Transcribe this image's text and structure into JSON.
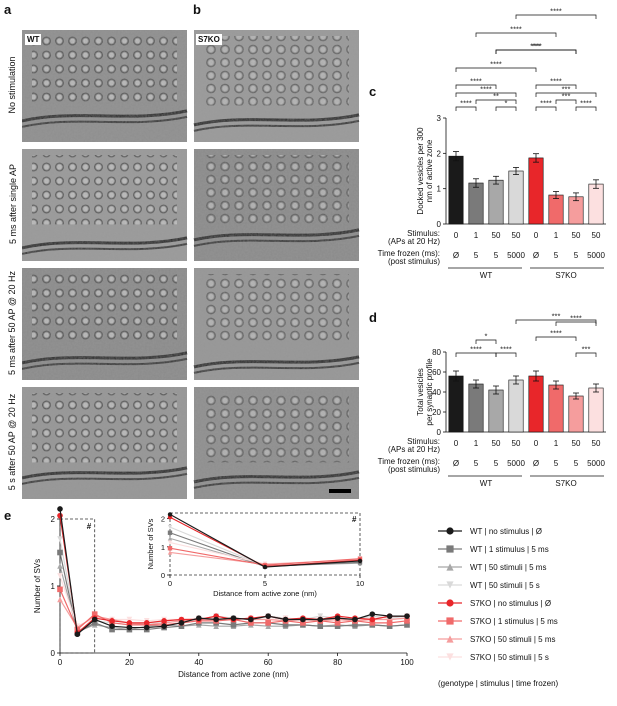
{
  "panel_labels": {
    "a": "a",
    "b": "b",
    "c": "c",
    "d": "d",
    "e": "e"
  },
  "micrographs": {
    "col_tags": [
      "WT",
      "S7KO"
    ],
    "row_labels": [
      "No stimulation",
      "5 ms after single AP",
      "5 ms after 50 AP @ 20 Hz",
      "5 s after 50 AP @ 20 Hz"
    ]
  },
  "colors": {
    "wt": [
      "#1a1a1a",
      "#7a7a7a",
      "#a8a8a8",
      "#d9d9d9"
    ],
    "s7ko": [
      "#e8262a",
      "#f06a6a",
      "#f59d9d",
      "#fce0e0"
    ]
  },
  "table": {
    "stim_label": "Stimulus:",
    "stim_label2": "(APs at 20 Hz)",
    "time_label": "Time frozen (ms):",
    "time_label2": "(post stimulus)",
    "stim_values": [
      "0",
      "1",
      "50",
      "50",
      "0",
      "1",
      "50",
      "50"
    ],
    "time_values": [
      "Ø",
      "5",
      "5",
      "5000",
      "Ø",
      "5",
      "5",
      "5000"
    ],
    "group_wt": "WT",
    "group_s7ko": "S7KO"
  },
  "chart_data": [
    {
      "id": "c",
      "type": "bar",
      "ylabel": "Docked vesicles per 300 nm of active zone",
      "ylim": [
        0,
        3
      ],
      "yticks": [
        "0",
        "1",
        "2",
        "3"
      ],
      "values": [
        1.92,
        1.16,
        1.24,
        1.5,
        1.87,
        0.82,
        0.77,
        1.13
      ],
      "errors": [
        0.13,
        0.12,
        0.11,
        0.1,
        0.12,
        0.1,
        0.11,
        0.12
      ],
      "sig": [
        "****",
        "**",
        "*",
        "****",
        "****",
        "****",
        "***",
        "****",
        "***",
        "****",
        "****"
      ]
    },
    {
      "id": "d",
      "type": "bar",
      "ylabel": "Total vesicles per synaptic profile",
      "ylim": [
        0,
        80
      ],
      "yticks": [
        "0",
        "20",
        "40",
        "60",
        "80"
      ],
      "values": [
        56,
        48,
        42,
        52,
        56,
        47,
        36,
        44
      ],
      "errors": [
        5,
        4,
        4,
        4,
        5,
        4,
        3,
        4
      ],
      "sig": [
        "*",
        "****",
        "****",
        "***",
        "****",
        "****",
        "***"
      ]
    },
    {
      "id": "e",
      "type": "line",
      "xlabel": "Distance from active zone (nm)",
      "ylabel": "Number of SVs",
      "xlim": [
        0,
        100
      ],
      "ylim": [
        0,
        2
      ],
      "xticks": [
        "0",
        "20",
        "40",
        "60",
        "80",
        "100"
      ],
      "yticks": [
        "0",
        "1",
        "2"
      ],
      "x": [
        0,
        5,
        10,
        15,
        20,
        25,
        30,
        35,
        40,
        45,
        50,
        55,
        60,
        65,
        70,
        75,
        80,
        85,
        90,
        95,
        100
      ],
      "series": [
        {
          "name": "WT | no stimulus | Ø",
          "values": [
            2.15,
            0.28,
            0.5,
            0.4,
            0.38,
            0.38,
            0.4,
            0.45,
            0.52,
            0.5,
            0.52,
            0.5,
            0.55,
            0.5,
            0.5,
            0.5,
            0.52,
            0.5,
            0.58,
            0.55,
            0.55
          ]
        },
        {
          "name": "WT | 1 stimulus | 5 ms",
          "values": [
            1.5,
            0.3,
            0.45,
            0.35,
            0.35,
            0.35,
            0.38,
            0.4,
            0.45,
            0.45,
            0.42,
            0.45,
            0.45,
            0.42,
            0.42,
            0.4,
            0.4,
            0.42,
            0.42,
            0.4,
            0.42
          ]
        },
        {
          "name": "WT | 50 stimuli | 5 ms",
          "values": [
            1.3,
            0.32,
            0.42,
            0.38,
            0.35,
            0.4,
            0.42,
            0.4,
            0.42,
            0.4,
            0.4,
            0.42,
            0.4,
            0.4,
            0.42,
            0.4,
            0.42,
            0.4,
            0.42,
            0.4,
            0.42
          ]
        },
        {
          "name": "WT | 50 stimuli | 5 s",
          "values": [
            1.7,
            0.32,
            0.48,
            0.45,
            0.42,
            0.45,
            0.45,
            0.48,
            0.5,
            0.55,
            0.52,
            0.5,
            0.55,
            0.52,
            0.5,
            0.55,
            0.52,
            0.5,
            0.55,
            0.52,
            0.55
          ]
        },
        {
          "name": "S7KO | no stimulus | Ø",
          "values": [
            2.05,
            0.3,
            0.52,
            0.48,
            0.45,
            0.45,
            0.48,
            0.5,
            0.5,
            0.55,
            0.5,
            0.52,
            0.55,
            0.5,
            0.52,
            0.5,
            0.55,
            0.52,
            0.5,
            0.55,
            0.55
          ]
        },
        {
          "name": "S7KO | 1 stimulus | 5 ms",
          "values": [
            0.95,
            0.35,
            0.58,
            0.45,
            0.42,
            0.42,
            0.42,
            0.45,
            0.48,
            0.48,
            0.5,
            0.45,
            0.45,
            0.48,
            0.45,
            0.48,
            0.45,
            0.48,
            0.45,
            0.45,
            0.48
          ]
        },
        {
          "name": "S7KO | 50 stimuli | 5 ms",
          "values": [
            0.8,
            0.38,
            0.55,
            0.5,
            0.45,
            0.42,
            0.45,
            0.48,
            0.5,
            0.5,
            0.52,
            0.5,
            0.5,
            0.48,
            0.5,
            0.48,
            0.5,
            0.48,
            0.5,
            0.5,
            0.52
          ]
        },
        {
          "name": "S7KO | 50 stimuli | 5 s",
          "values": [
            1.15,
            0.4,
            0.52,
            0.5,
            0.5,
            0.48,
            0.5,
            0.5,
            0.52,
            0.52,
            0.5,
            0.52,
            0.5,
            0.52,
            0.5,
            0.5,
            0.52,
            0.5,
            0.52,
            0.5,
            0.52
          ]
        }
      ],
      "inset": {
        "xlabel": "Distance from active zone (nm)",
        "ylabel": "Number of SVs",
        "xlim": [
          0,
          10
        ],
        "ylim": [
          0,
          2.2
        ],
        "xticks": [
          "0",
          "5",
          "10"
        ],
        "yticks": [
          "0",
          "1",
          "2"
        ],
        "marker": "#"
      },
      "box_marker": "#",
      "legend_note": "(genotype | stimulus | time frozen)"
    }
  ]
}
